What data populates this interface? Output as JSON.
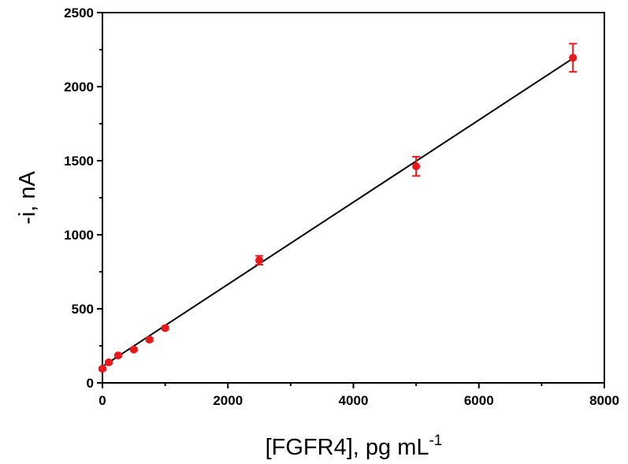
{
  "chart_data": {
    "type": "scatter",
    "xlabel": "[FGFR4], pg mL",
    "xlabel_superscript": "-1",
    "ylabel": "-i, nA",
    "xlim": [
      0,
      8000
    ],
    "ylim": [
      0,
      2500
    ],
    "x_ticks": [
      0,
      2000,
      4000,
      6000,
      8000
    ],
    "y_ticks": [
      0,
      500,
      1000,
      1500,
      2000,
      2500
    ],
    "x_minor_step": 1000,
    "y_minor_step": 250,
    "grid": false,
    "marker_color": "#e8191a",
    "line_color": "#000000",
    "series": [
      {
        "points": [
          {
            "x": 0,
            "y": 95,
            "err": 8
          },
          {
            "x": 100,
            "y": 138,
            "err": 8
          },
          {
            "x": 250,
            "y": 185,
            "err": 8
          },
          {
            "x": 500,
            "y": 225,
            "err": 8
          },
          {
            "x": 750,
            "y": 292,
            "err": 10
          },
          {
            "x": 1000,
            "y": 370,
            "err": 10
          },
          {
            "x": 2500,
            "y": 828,
            "err": 30
          },
          {
            "x": 5000,
            "y": 1462,
            "err": 65
          },
          {
            "x": 7500,
            "y": 2195,
            "err": 95
          }
        ]
      }
    ],
    "fit_line": {
      "slope": 0.2775,
      "intercept": 110,
      "x_range": [
        0,
        7500
      ]
    }
  }
}
